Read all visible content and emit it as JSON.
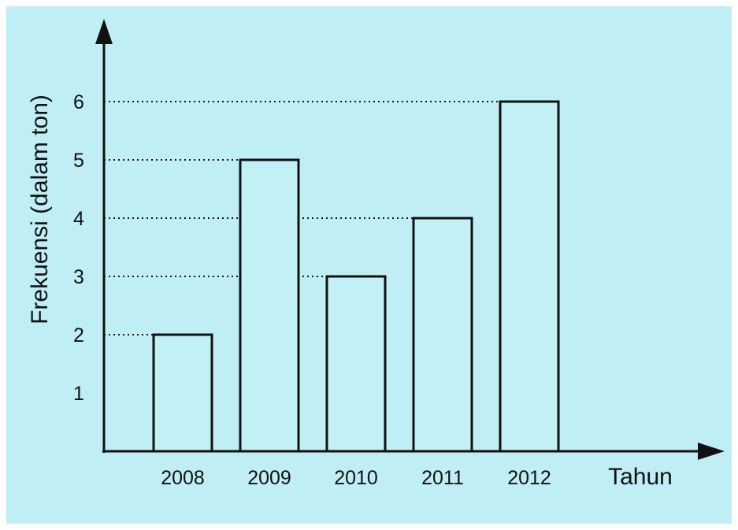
{
  "colors": {
    "background": "#bfeff4",
    "ink": "#111111",
    "bar_fill": "#c2f1f5"
  },
  "chart_data": {
    "type": "bar",
    "categories": [
      "2008",
      "2009",
      "2010",
      "2011",
      "2012"
    ],
    "values": [
      2,
      5,
      3,
      4,
      6
    ],
    "title": "",
    "xlabel": "Tahun",
    "ylabel": "Frekuensi (dalam ton)",
    "ylim": [
      0,
      7
    ],
    "y_ticks": [
      "1",
      "2",
      "3",
      "4",
      "5",
      "6"
    ],
    "grid": false,
    "value_guides": "dotted",
    "legend": "none"
  }
}
